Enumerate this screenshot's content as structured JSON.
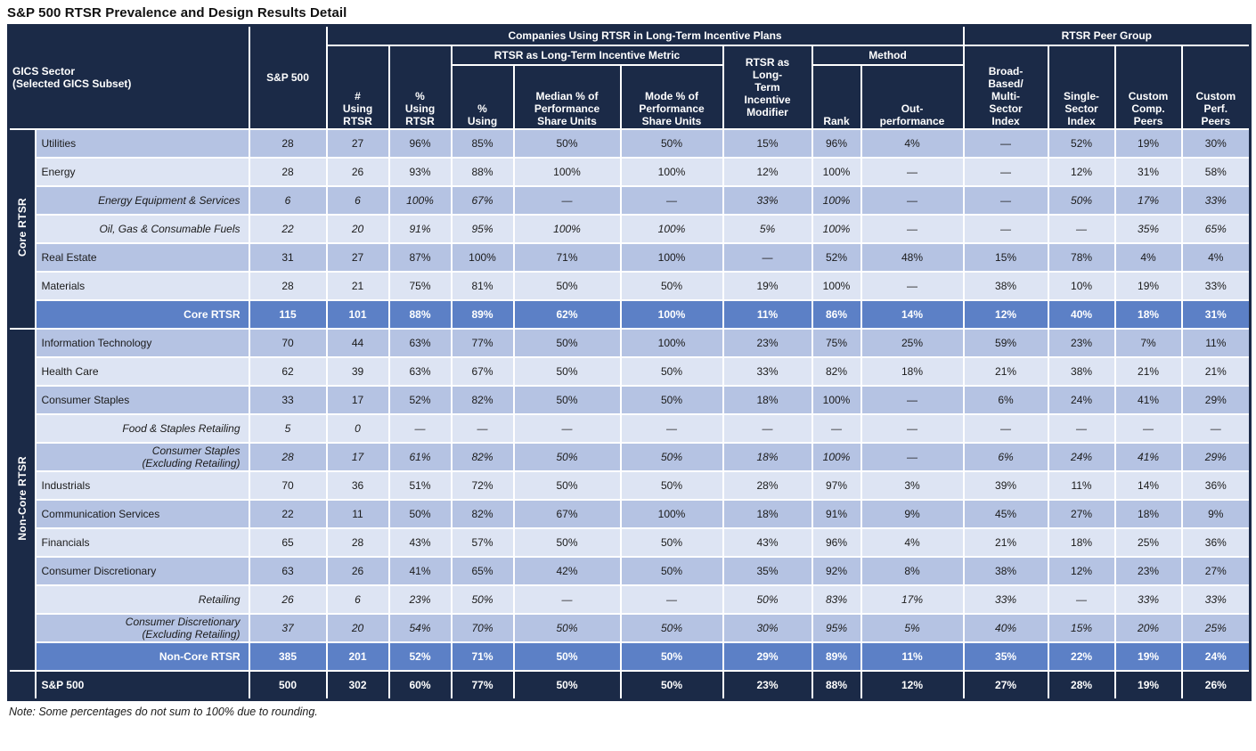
{
  "title": "S&P 500 RTSR Prevalence and Design Results Detail",
  "note": "Note: Some percentages do not sum to 100% due to rounding.",
  "colors": {
    "header_navy": "#1b2a47",
    "band_dark": "#b5c3e3",
    "band_light": "#dde4f3",
    "subtotal_blue": "#5c80c6",
    "grid_white": "#ffffff"
  },
  "chart_data": {
    "type": "table",
    "title": "S&P 500 RTSR Prevalence and Design Results Detail",
    "header": {
      "gics_sector": "GICS Sector\n(Selected GICS Subset)",
      "sp500": "S&P 500",
      "companies_group": "Companies Using RTSR in Long-Term Incentive Plans",
      "metric_group": "RTSR as Long-Term Incentive Metric",
      "method_group": "Method",
      "peer_group": "RTSR Peer Group",
      "num_using_rtsr": "#\nUsing\nRTSR",
      "pct_using_rtsr": "%\nUsing\nRTSR",
      "pct_using": "%\nUsing",
      "median_psu": "Median % of\nPerformance\nShare Units",
      "mode_psu": "Mode % of\nPerformance\nShare Units",
      "lti_modifier": "RTSR as\nLong-\nTerm\nIncentive\nModifier",
      "rank": "Rank",
      "outperformance": "Out-\nperformance",
      "broad_index": "Broad-\nBased/\nMulti-\nSector\nIndex",
      "single_index": "Single-\nSector\nIndex",
      "custom_comp": "Custom\nComp.\nPeers",
      "custom_perf": "Custom\nPerf.\nPeers"
    },
    "value_columns": [
      "S&P 500",
      "# Using RTSR",
      "% Using RTSR",
      "% Using",
      "Median % of Performance Share Units",
      "Mode % of Performance Share Units",
      "RTSR as Long-Term Incentive Modifier",
      "Rank",
      "Out-performance",
      "Broad-Based/Multi-Sector Index",
      "Single-Sector Index",
      "Custom Comp. Peers",
      "Custom Perf. Peers"
    ],
    "sections": [
      {
        "group_label": "Core RTSR",
        "rows": [
          {
            "name": "Utilities",
            "kind": "sector",
            "shade": "dark",
            "values": [
              "28",
              "27",
              "96%",
              "85%",
              "50%",
              "50%",
              "15%",
              "96%",
              "4%",
              "—",
              "52%",
              "19%",
              "30%"
            ]
          },
          {
            "name": "Energy",
            "kind": "sector",
            "shade": "light",
            "values": [
              "28",
              "26",
              "93%",
              "88%",
              "100%",
              "100%",
              "12%",
              "100%",
              "—",
              "—",
              "12%",
              "31%",
              "58%"
            ]
          },
          {
            "name": "Energy Equipment & Services",
            "kind": "subset",
            "shade": "dark",
            "values": [
              "6",
              "6",
              "100%",
              "67%",
              "—",
              "—",
              "33%",
              "100%",
              "—",
              "—",
              "50%",
              "17%",
              "33%"
            ]
          },
          {
            "name": "Oil, Gas & Consumable Fuels",
            "kind": "subset",
            "shade": "light",
            "values": [
              "22",
              "20",
              "91%",
              "95%",
              "100%",
              "100%",
              "5%",
              "100%",
              "—",
              "—",
              "—",
              "35%",
              "65%"
            ]
          },
          {
            "name": "Real Estate",
            "kind": "sector",
            "shade": "dark",
            "values": [
              "31",
              "27",
              "87%",
              "100%",
              "71%",
              "100%",
              "—",
              "52%",
              "48%",
              "15%",
              "78%",
              "4%",
              "4%"
            ]
          },
          {
            "name": "Materials",
            "kind": "sector",
            "shade": "light",
            "values": [
              "28",
              "21",
              "75%",
              "81%",
              "50%",
              "50%",
              "19%",
              "100%",
              "—",
              "38%",
              "10%",
              "19%",
              "33%"
            ]
          },
          {
            "name": "Core RTSR",
            "kind": "subtotal",
            "shade": "",
            "values": [
              "115",
              "101",
              "88%",
              "89%",
              "62%",
              "100%",
              "11%",
              "86%",
              "14%",
              "12%",
              "40%",
              "18%",
              "31%"
            ]
          }
        ]
      },
      {
        "group_label": "Non-Core RTSR",
        "rows": [
          {
            "name": "Information Technology",
            "kind": "sector",
            "shade": "dark",
            "values": [
              "70",
              "44",
              "63%",
              "77%",
              "50%",
              "100%",
              "23%",
              "75%",
              "25%",
              "59%",
              "23%",
              "7%",
              "11%"
            ]
          },
          {
            "name": "Health Care",
            "kind": "sector",
            "shade": "light",
            "values": [
              "62",
              "39",
              "63%",
              "67%",
              "50%",
              "50%",
              "33%",
              "82%",
              "18%",
              "21%",
              "38%",
              "21%",
              "21%"
            ]
          },
          {
            "name": "Consumer Staples",
            "kind": "sector",
            "shade": "dark",
            "values": [
              "33",
              "17",
              "52%",
              "82%",
              "50%",
              "50%",
              "18%",
              "100%",
              "—",
              "6%",
              "24%",
              "41%",
              "29%"
            ]
          },
          {
            "name": "Food & Staples Retailing",
            "kind": "subset",
            "shade": "light",
            "values": [
              "5",
              "0",
              "—",
              "—",
              "—",
              "—",
              "—",
              "—",
              "—",
              "—",
              "—",
              "—",
              "—"
            ]
          },
          {
            "name": "Consumer Staples\n(Excluding Retailing)",
            "kind": "subset",
            "shade": "dark",
            "values": [
              "28",
              "17",
              "61%",
              "82%",
              "50%",
              "50%",
              "18%",
              "100%",
              "—",
              "6%",
              "24%",
              "41%",
              "29%"
            ]
          },
          {
            "name": "Industrials",
            "kind": "sector",
            "shade": "light",
            "values": [
              "70",
              "36",
              "51%",
              "72%",
              "50%",
              "50%",
              "28%",
              "97%",
              "3%",
              "39%",
              "11%",
              "14%",
              "36%"
            ]
          },
          {
            "name": "Communication Services",
            "kind": "sector",
            "shade": "dark",
            "values": [
              "22",
              "11",
              "50%",
              "82%",
              "67%",
              "100%",
              "18%",
              "91%",
              "9%",
              "45%",
              "27%",
              "18%",
              "9%"
            ]
          },
          {
            "name": "Financials",
            "kind": "sector",
            "shade": "light",
            "values": [
              "65",
              "28",
              "43%",
              "57%",
              "50%",
              "50%",
              "43%",
              "96%",
              "4%",
              "21%",
              "18%",
              "25%",
              "36%"
            ]
          },
          {
            "name": "Consumer Discretionary",
            "kind": "sector",
            "shade": "dark",
            "values": [
              "63",
              "26",
              "41%",
              "65%",
              "42%",
              "50%",
              "35%",
              "92%",
              "8%",
              "38%",
              "12%",
              "23%",
              "27%"
            ]
          },
          {
            "name": "Retailing",
            "kind": "subset",
            "shade": "light",
            "values": [
              "26",
              "6",
              "23%",
              "50%",
              "—",
              "—",
              "50%",
              "83%",
              "17%",
              "33%",
              "—",
              "33%",
              "33%"
            ]
          },
          {
            "name": "Consumer Discretionary\n(Excluding Retailing)",
            "kind": "subset",
            "shade": "dark",
            "values": [
              "37",
              "20",
              "54%",
              "70%",
              "50%",
              "50%",
              "30%",
              "95%",
              "5%",
              "40%",
              "15%",
              "20%",
              "25%"
            ]
          },
          {
            "name": "Non-Core RTSR",
            "kind": "subtotal",
            "shade": "",
            "values": [
              "385",
              "201",
              "52%",
              "71%",
              "50%",
              "50%",
              "29%",
              "89%",
              "11%",
              "35%",
              "22%",
              "19%",
              "24%"
            ]
          }
        ]
      },
      {
        "group_label": "",
        "rows": [
          {
            "name": "S&P 500",
            "kind": "total",
            "shade": "",
            "values": [
              "500",
              "302",
              "60%",
              "77%",
              "50%",
              "50%",
              "23%",
              "88%",
              "12%",
              "27%",
              "28%",
              "19%",
              "26%"
            ]
          }
        ]
      }
    ]
  }
}
